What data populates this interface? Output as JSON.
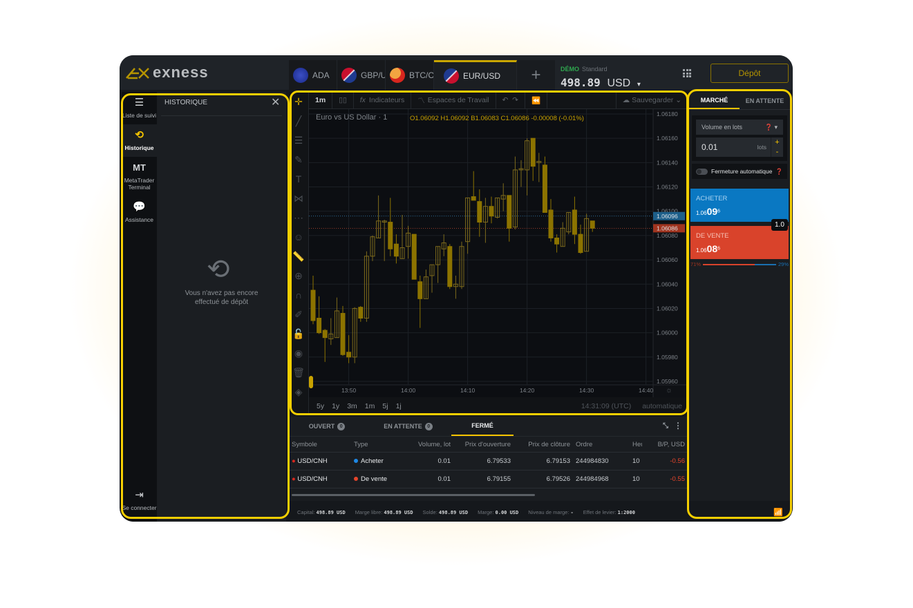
{
  "brand": {
    "logo": "exness",
    "accent": "#f5c400"
  },
  "tabs": [
    {
      "label": "ADA",
      "icon": "cardano-flag"
    },
    {
      "label": "GBP/USD",
      "icon": "gb-us-flag"
    },
    {
      "label": "BTC/CNH",
      "icon": "btc-cn-flag"
    },
    {
      "label": "EUR/USD",
      "icon": "eu-us-flag",
      "active": true
    }
  ],
  "account": {
    "type": "DÉMO",
    "plan": "Standard",
    "balance": "498.89",
    "currency": "USD"
  },
  "deposit_label": "Dépôt",
  "nav": [
    {
      "label": "Liste de suivi",
      "icon": "list-icon"
    },
    {
      "label": "Historique",
      "icon": "history-icon",
      "active": true
    },
    {
      "label": "MetaTrader Terminal",
      "icon": "mt-icon",
      "glyph": "MT"
    },
    {
      "label": "Assistance",
      "icon": "chat-icon"
    }
  ],
  "nav_bottom": {
    "label": "Se connecter",
    "icon": "logout-icon"
  },
  "history": {
    "title": "HISTORIQUE",
    "empty_line1": "Vous n'avez pas encore",
    "empty_line2": "effectué de dépôt"
  },
  "chart_toolbar": {
    "interval": "1m",
    "indicators": "Indicateurs",
    "workspaces": "Espaces de Travail",
    "save": "Sauvegarder"
  },
  "chart_header": {
    "title": "Euro vs US Dollar · 1",
    "ohlc": "O1.06092 H1.06092 B1.06083 C1.06086 -0.00008 (-0.01%)"
  },
  "chart_bottom": {
    "ranges": [
      "5y",
      "1y",
      "3m",
      "1m",
      "5j",
      "1j"
    ],
    "clock": "14:31:09 (UTC)",
    "scale": "automatique"
  },
  "chart_data": {
    "type": "candlestick",
    "symbol": "EUR/USD",
    "ylim": [
      1.0595,
      1.06185
    ],
    "y_ticks": [
      "1.06180",
      "1.06160",
      "1.06140",
      "1.06120",
      "1.06100",
      "1.06080",
      "1.06060",
      "1.06040",
      "1.06020",
      "1.06000",
      "1.05980",
      "1.05960"
    ],
    "x_ticks": [
      "13:50",
      "14:00",
      "14:10",
      "14:20",
      "14:30",
      "14:40"
    ],
    "ask": "1.06096",
    "bid": "1.06086",
    "colors": {
      "up": "#7d6a1c",
      "down": "#8c7300",
      "ask": "#1d5f8a",
      "bid": "#a0341f"
    },
    "candles": [
      [
        "13:44",
        1.06035,
        1.06047,
        1.06007,
        1.0601
      ],
      [
        "13:45",
        1.06012,
        1.0603,
        1.05999,
        1.06
      ],
      [
        "13:46",
        1.06002,
        1.06003,
        1.05976,
        1.05996
      ],
      [
        "13:47",
        1.05995,
        1.06012,
        1.0599,
        1.05999
      ],
      [
        "13:48",
        1.05996,
        1.06029,
        1.05996,
        1.06018
      ],
      [
        "13:49",
        1.06016,
        1.06022,
        1.05981,
        1.05982
      ],
      [
        "13:50",
        1.05984,
        1.05998,
        1.05975,
        1.0598
      ],
      [
        "13:51",
        1.0598,
        1.06021,
        1.05975,
        1.0602
      ],
      [
        "13:52",
        1.06021,
        1.06022,
        1.06009,
        1.06012
      ],
      [
        "13:53",
        1.06012,
        1.06067,
        1.06009,
        1.06063
      ],
      [
        "13:54",
        1.06063,
        1.0608,
        1.06059,
        1.06079
      ],
      [
        "13:55",
        1.06078,
        1.06113,
        1.06078,
        1.06092
      ],
      [
        "13:56",
        1.06091,
        1.06093,
        1.06059,
        1.06092
      ],
      [
        "13:57",
        1.06091,
        1.06111,
        1.06063,
        1.06069
      ],
      [
        "13:58",
        1.06073,
        1.06081,
        1.06057,
        1.06063
      ],
      [
        "13:59",
        1.06061,
        1.06097,
        1.06061,
        1.0607
      ],
      [
        "14:00",
        1.06071,
        1.06088,
        1.06061,
        1.06082
      ],
      [
        "14:01",
        1.06081,
        1.06081,
        1.06044,
        1.06044
      ],
      [
        "14:02",
        1.06042,
        1.06047,
        1.06004,
        1.06028
      ],
      [
        "14:03",
        1.06028,
        1.06052,
        1.06028,
        1.06046
      ],
      [
        "14:04",
        1.06047,
        1.06056,
        1.06033,
        1.06056
      ],
      [
        "14:05",
        1.06056,
        1.06071,
        1.06041,
        1.06071
      ],
      [
        "14:06",
        1.06069,
        1.06081,
        1.06063,
        1.06074
      ],
      [
        "14:07",
        1.06071,
        1.06073,
        1.06036,
        1.06038
      ],
      [
        "14:08",
        1.06038,
        1.06047,
        1.06028,
        1.0604
      ],
      [
        "14:09",
        1.06038,
        1.06075,
        1.06036,
        1.06071
      ],
      [
        "14:10",
        1.06075,
        1.06111,
        1.06065,
        1.06111
      ],
      [
        "14:11",
        1.06112,
        1.06133,
        1.06109,
        1.06109
      ],
      [
        "14:12",
        1.06108,
        1.06118,
        1.06079,
        1.06091
      ],
      [
        "14:13",
        1.06091,
        1.06111,
        1.06074,
        1.06104
      ],
      [
        "14:14",
        1.06104,
        1.06112,
        1.0609,
        1.06096
      ],
      [
        "14:15",
        1.06095,
        1.06111,
        1.06094,
        1.06111
      ],
      [
        "14:16",
        1.0611,
        1.06123,
        1.061,
        1.06113
      ],
      [
        "14:17",
        1.06113,
        1.06113,
        1.06075,
        1.06086
      ],
      [
        "14:18",
        1.06087,
        1.06145,
        1.06085,
        1.06134
      ],
      [
        "14:19",
        1.06134,
        1.06142,
        1.0612,
        1.06135
      ],
      [
        "14:20",
        1.06134,
        1.0616,
        1.06113,
        1.06158
      ],
      [
        "14:21",
        1.0616,
        1.0616,
        1.06125,
        1.06137
      ],
      [
        "14:22",
        1.0614,
        1.06148,
        1.06124,
        1.06141
      ],
      [
        "14:23",
        1.06138,
        1.06145,
        1.06099,
        1.06099
      ],
      [
        "14:24",
        1.06101,
        1.0611,
        1.06075,
        1.06078
      ],
      [
        "14:25",
        1.06078,
        1.06081,
        1.06066,
        1.06073
      ],
      [
        "14:26",
        1.06071,
        1.06091,
        1.06071,
        1.06086
      ],
      [
        "14:27",
        1.06083,
        1.06099,
        1.06081,
        1.06099
      ],
      [
        "14:28",
        1.06101,
        1.06112,
        1.06073,
        1.06081
      ],
      [
        "14:29",
        1.06081,
        1.06089,
        1.06065,
        1.06066
      ],
      [
        "14:30",
        1.06067,
        1.06098,
        1.06067,
        1.06094
      ],
      [
        "14:31",
        1.06092,
        1.06092,
        1.06083,
        1.06086
      ]
    ]
  },
  "positions": {
    "tabs": [
      {
        "label": "OUVERT",
        "count": "0"
      },
      {
        "label": "EN ATTENTE",
        "count": "0"
      },
      {
        "label": "FERMÉ",
        "active": true
      }
    ],
    "columns": [
      "Symbole",
      "Type",
      "Volume, lot",
      "Prix d'ouverture",
      "Prix de clôture",
      "Ordre",
      "Heure",
      "B/P, USD"
    ],
    "rows": [
      {
        "symbol": "USD/CNH",
        "type": "Acheter",
        "type_color": "#1e88e5",
        "volume": "0.01",
        "open": "6.79533",
        "close": "6.79153",
        "order": "244984830",
        "time": "10",
        "pl": "-0.56"
      },
      {
        "symbol": "USD/CNH",
        "type": "De vente",
        "type_color": "#e5452b",
        "volume": "0.01",
        "open": "6.79155",
        "close": "6.79526",
        "order": "244984968",
        "time": "10",
        "pl": "-0.55"
      }
    ]
  },
  "status": [
    {
      "label": "Capital:",
      "value": "498.89 USD"
    },
    {
      "label": "Marge libre:",
      "value": "498.89 USD"
    },
    {
      "label": "Solde:",
      "value": "498.89 USD"
    },
    {
      "label": "Marge:",
      "value": "0.00 USD"
    },
    {
      "label": "Niveau de marge:",
      "value": "-"
    },
    {
      "label": "Effet de levier:",
      "value": "1:2000"
    }
  ],
  "order": {
    "tab_market": "MARCHÉ",
    "tab_pending": "EN ATTENTE",
    "volume_mode": "Volume en lots",
    "volume": "0.01",
    "unit": "lots",
    "plus": "+",
    "minus": "-",
    "auto_close": "Fermeture automatique",
    "buy_label": "ACHETER",
    "buy_prefix": "1.06",
    "buy_big": "09",
    "buy_sup": "6",
    "buy_color": "#0a78c2",
    "sell_label": "DE VENTE",
    "sell_prefix": "1.06",
    "sell_big": "08",
    "sell_sup": "6",
    "sell_color": "#d9432b",
    "spread": "1.0",
    "sell_pct": "71%",
    "buy_pct": "29%",
    "sentiment_sell": 0.71
  }
}
